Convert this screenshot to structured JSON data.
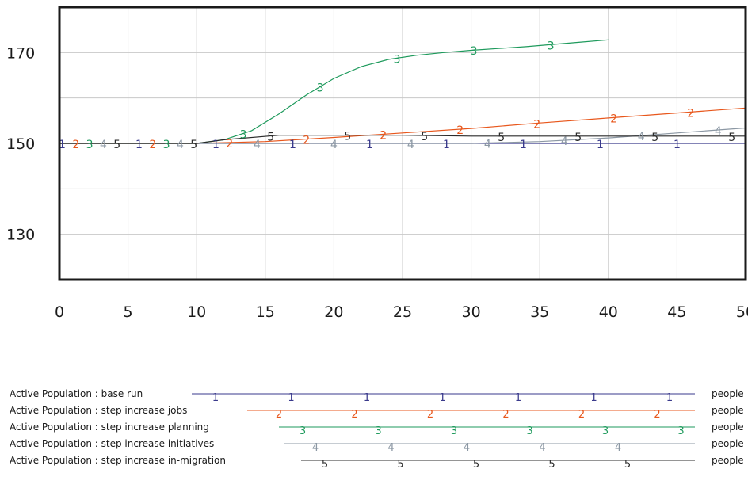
{
  "chart_data": {
    "type": "line",
    "xlim": [
      0,
      50
    ],
    "ylim": [
      120,
      180
    ],
    "x_ticks": [
      "0",
      "5",
      "10",
      "15",
      "20",
      "25",
      "30",
      "35",
      "40",
      "45",
      "50"
    ],
    "y_ticks": [
      "170",
      "150",
      "130"
    ],
    "y_tick_values": [
      170,
      150,
      130
    ],
    "grid": true,
    "legend_placement": "bottom",
    "series": [
      {
        "marker": "1",
        "name": "Active Population : base run",
        "unit": "people",
        "color": "#3a3a8c",
        "x": [
          0,
          50
        ],
        "y": [
          150,
          150
        ]
      },
      {
        "marker": "2",
        "name": "Active Population : step increase jobs",
        "unit": "people",
        "color": "#e8571c",
        "x": [
          0,
          10,
          15,
          20,
          25,
          30,
          35,
          40,
          45,
          50
        ],
        "y": [
          150,
          150,
          150.4,
          151.3,
          152.3,
          153.3,
          154.5,
          155.6,
          156.7,
          157.8
        ]
      },
      {
        "marker": "3",
        "name": "Active Population : step increase planning",
        "unit": "people",
        "color": "#1e9a5c",
        "x": [
          0,
          10,
          12,
          14,
          16,
          18,
          20,
          22,
          24,
          26,
          28,
          30,
          32,
          34,
          36,
          38,
          40
        ],
        "y": [
          150,
          150,
          150.8,
          152.8,
          156.5,
          160.7,
          164.3,
          166.9,
          168.5,
          169.4,
          170,
          170.5,
          170.9,
          171.3,
          171.8,
          172.3,
          172.8
        ]
      },
      {
        "marker": "4",
        "name": "Active Population : step increase initiatives",
        "unit": "people",
        "color": "#8c98a4",
        "x": [
          0,
          30,
          35,
          40,
          45,
          50
        ],
        "y": [
          150,
          150,
          150.4,
          151.2,
          152.3,
          153.4
        ]
      },
      {
        "marker": "5",
        "name": "Active Population : step increase in-migration",
        "unit": "people",
        "color": "#2b2b2b",
        "x": [
          0,
          10,
          12,
          16,
          25,
          30,
          40,
          50
        ],
        "y": [
          150,
          150,
          150.8,
          151.8,
          151.8,
          151.6,
          151.6,
          151.6
        ]
      }
    ]
  }
}
